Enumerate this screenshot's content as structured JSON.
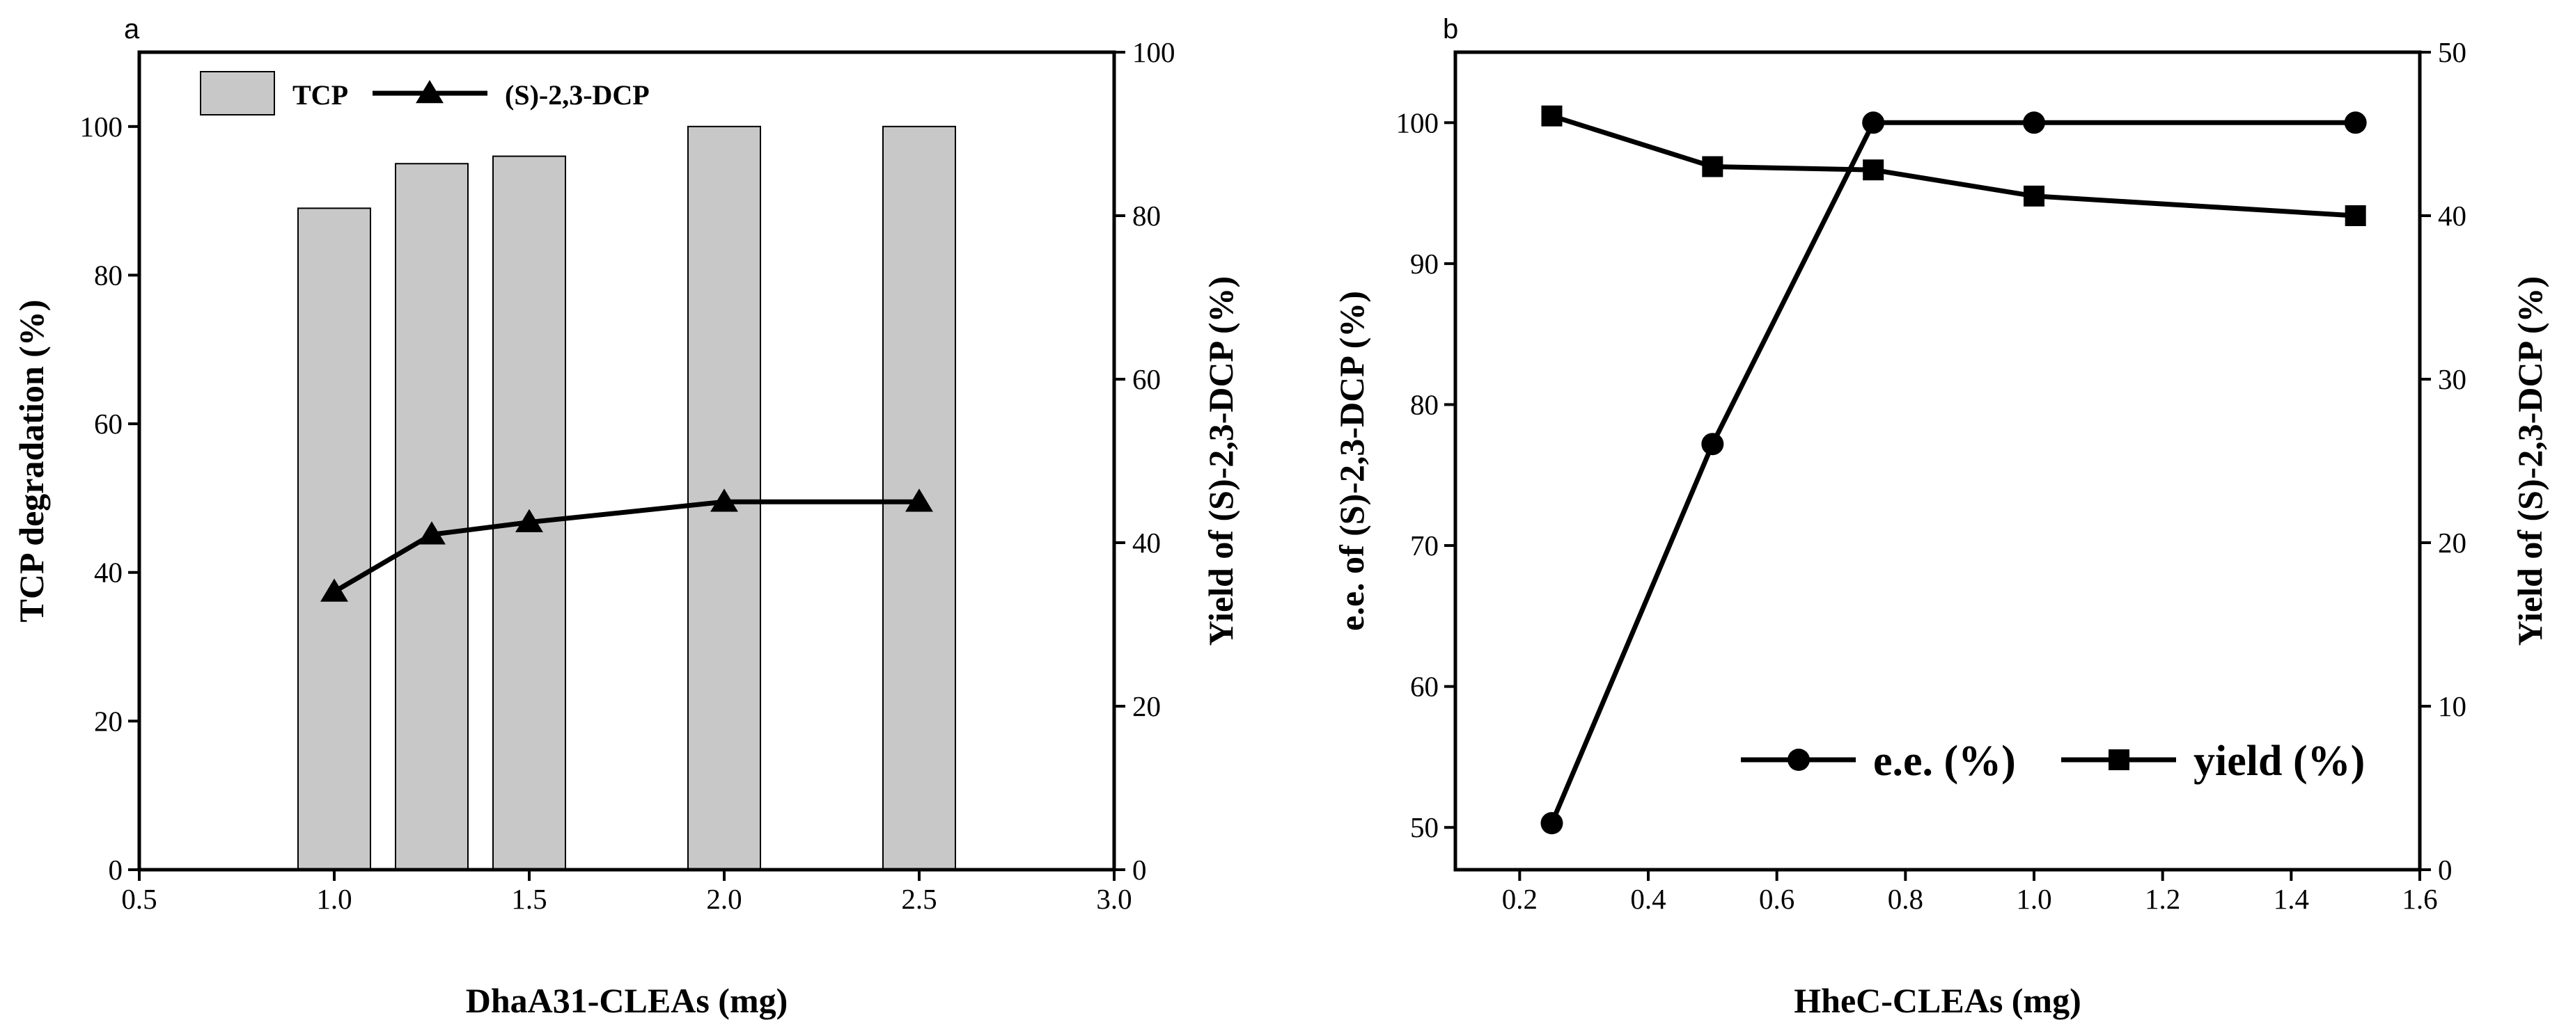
{
  "chart_data": [
    {
      "panel": "a",
      "type": "bar+line",
      "xlabel": "DhaA31-CLEAs (mg)",
      "ylabel_left": "TCP degradation (%)",
      "ylabel_right": "Yield of (S)-2,3-DCP (%)",
      "xlim": [
        0.5,
        3.0
      ],
      "ylim_left": [
        0,
        110
      ],
      "ylim_right": [
        0,
        100
      ],
      "xticks": [
        "0.5",
        "1.0",
        "1.5",
        "2.0",
        "2.5",
        "3.0"
      ],
      "yticks_left": [
        "0",
        "20",
        "40",
        "60",
        "80",
        "100"
      ],
      "yticks_right": [
        "0",
        "20",
        "40",
        "60",
        "80",
        "100"
      ],
      "legend": [
        "TCP",
        "(S)-2,3-DCP"
      ],
      "series": [
        {
          "name": "TCP",
          "kind": "bar",
          "axis": "left",
          "x": [
            1.0,
            1.25,
            1.5,
            2.0,
            2.5
          ],
          "values": [
            89,
            95,
            96,
            100,
            100
          ]
        },
        {
          "name": "(S)-2,3-DCP",
          "kind": "line",
          "marker": "triangle",
          "axis": "right",
          "x": [
            1.0,
            1.25,
            1.5,
            2.0,
            2.5
          ],
          "values": [
            34,
            41,
            42.5,
            45,
            45
          ]
        }
      ],
      "colors": {
        "bar_fill": "#c8c8c8",
        "line": "#000000"
      }
    },
    {
      "panel": "b",
      "type": "line",
      "xlabel": "HheC-CLEAs (mg)",
      "ylabel_left": "e.e. of (S)-2,3-DCP (%)",
      "ylabel_right": "Yield of  (S)-2,3-DCP (%)",
      "xlim": [
        0.1,
        1.6
      ],
      "ylim_left": [
        47,
        105
      ],
      "ylim_right": [
        0,
        50
      ],
      "xticks": [
        "0.2",
        "0.4",
        "0.6",
        "0.8",
        "1.0",
        "1.2",
        "1.4",
        "1.6"
      ],
      "yticks_left": [
        "50",
        "60",
        "70",
        "80",
        "90",
        "100"
      ],
      "yticks_right": [
        "0",
        "10",
        "20",
        "30",
        "40",
        "50"
      ],
      "legend": [
        "e.e. (%)",
        "yield (%)"
      ],
      "series": [
        {
          "name": "e.e. (%)",
          "marker": "circle",
          "axis": "left",
          "x": [
            0.25,
            0.5,
            0.75,
            1.0,
            1.5
          ],
          "values": [
            50.3,
            77.2,
            100,
            100,
            100
          ]
        },
        {
          "name": "yield (%)",
          "marker": "square",
          "axis": "right",
          "x": [
            0.25,
            0.5,
            0.75,
            1.0,
            1.5
          ],
          "values": [
            46.1,
            43,
            42.8,
            41.2,
            40
          ]
        }
      ],
      "colors": {
        "line": "#000000"
      }
    }
  ]
}
